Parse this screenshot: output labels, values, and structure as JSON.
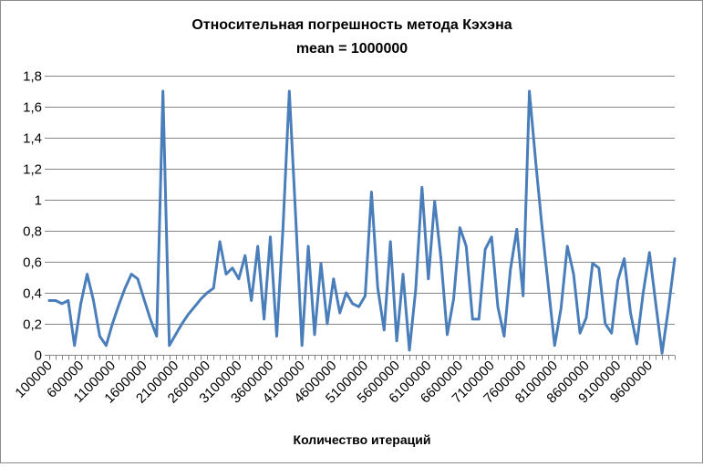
{
  "chart_data": {
    "type": "line",
    "title_lines": [
      "Относительная  погрешность  метода  Кэхэна",
      "mean = 1000000"
    ],
    "xlabel": "Количество итераций",
    "ylabel": "",
    "ylim": [
      0,
      1.8
    ],
    "ytick_values": [
      0,
      0.2,
      0.4,
      0.6,
      0.8,
      1,
      1.2,
      1.4,
      1.6,
      1.8
    ],
    "ytick_labels": [
      "0",
      "0,2",
      "0,4",
      "0,6",
      "0,8",
      "1",
      "1,2",
      "1,4",
      "1,6",
      "1,8"
    ],
    "xtick_labels": [
      "100000",
      "600000",
      "1100000",
      "1600000",
      "2100000",
      "2600000",
      "3100000",
      "3600000",
      "4100000",
      "4600000",
      "5100000",
      "5600000",
      "6100000",
      "6600000",
      "7100000",
      "7600000",
      "8100000",
      "8600000",
      "9100000",
      "9600000"
    ],
    "grid": true,
    "legend": "none",
    "color": "#4a7ebb",
    "series": [
      {
        "x": [
          100000,
          200000,
          300000,
          400000,
          500000,
          600000,
          700000,
          800000,
          900000,
          1000000,
          1100000,
          1200000,
          1300000,
          1400000,
          1500000,
          1600000,
          1700000,
          1800000,
          1900000,
          2000000,
          2100000,
          2200000,
          2300000,
          2400000,
          2500000,
          2600000,
          2700000,
          2800000,
          2900000,
          3000000,
          3100000,
          3200000,
          3300000,
          3400000,
          3500000,
          3600000,
          3700000,
          3800000,
          3900000,
          4000000,
          4100000,
          4200000,
          4300000,
          4400000,
          4500000,
          4600000,
          4700000,
          4800000,
          4900000,
          5000000,
          5100000,
          5200000,
          5300000,
          5400000,
          5500000,
          5600000,
          5700000,
          5800000,
          5900000,
          6000000,
          6100000,
          6200000,
          6300000,
          6400000,
          6500000,
          6600000,
          6700000,
          6800000,
          6900000,
          7000000,
          7100000,
          7200000,
          7300000,
          7400000,
          7500000,
          7600000,
          7700000,
          7800000,
          7900000,
          8000000,
          8100000,
          8200000,
          8300000,
          8400000,
          8500000,
          8600000,
          8700000,
          8800000,
          8900000,
          9000000,
          9100000,
          9200000,
          9300000,
          9400000,
          9500000,
          9600000,
          9700000,
          9800000,
          9900000,
          10000000
        ],
        "values": [
          0.35,
          0.35,
          0.33,
          0.35,
          0.06,
          0.33,
          0.52,
          0.35,
          0.12,
          0.06,
          0.2,
          0.32,
          0.43,
          0.52,
          0.49,
          0.36,
          0.23,
          0.12,
          1.7,
          0.06,
          0.13,
          0.2,
          0.26,
          0.31,
          0.36,
          0.4,
          0.43,
          0.73,
          0.52,
          0.56,
          0.49,
          0.64,
          0.35,
          0.7,
          0.23,
          0.76,
          0.12,
          0.82,
          1.7,
          0.9,
          0.06,
          0.7,
          0.13,
          0.59,
          0.2,
          0.49,
          0.27,
          0.4,
          0.33,
          0.31,
          0.38,
          1.05,
          0.43,
          0.16,
          0.73,
          0.09,
          0.52,
          0.03,
          0.42,
          1.08,
          0.49,
          0.99,
          0.62,
          0.13,
          0.36,
          0.82,
          0.7,
          0.23,
          0.23,
          0.68,
          0.76,
          0.31,
          0.12,
          0.55,
          0.81,
          0.38,
          1.7,
          1.24,
          0.82,
          0.44,
          0.06,
          0.3,
          0.7,
          0.52,
          0.14,
          0.24,
          0.59,
          0.56,
          0.2,
          0.14,
          0.48,
          0.62,
          0.27,
          0.07,
          0.4,
          0.66,
          0.33,
          0.01,
          0.3,
          0.62
        ]
      }
    ]
  }
}
